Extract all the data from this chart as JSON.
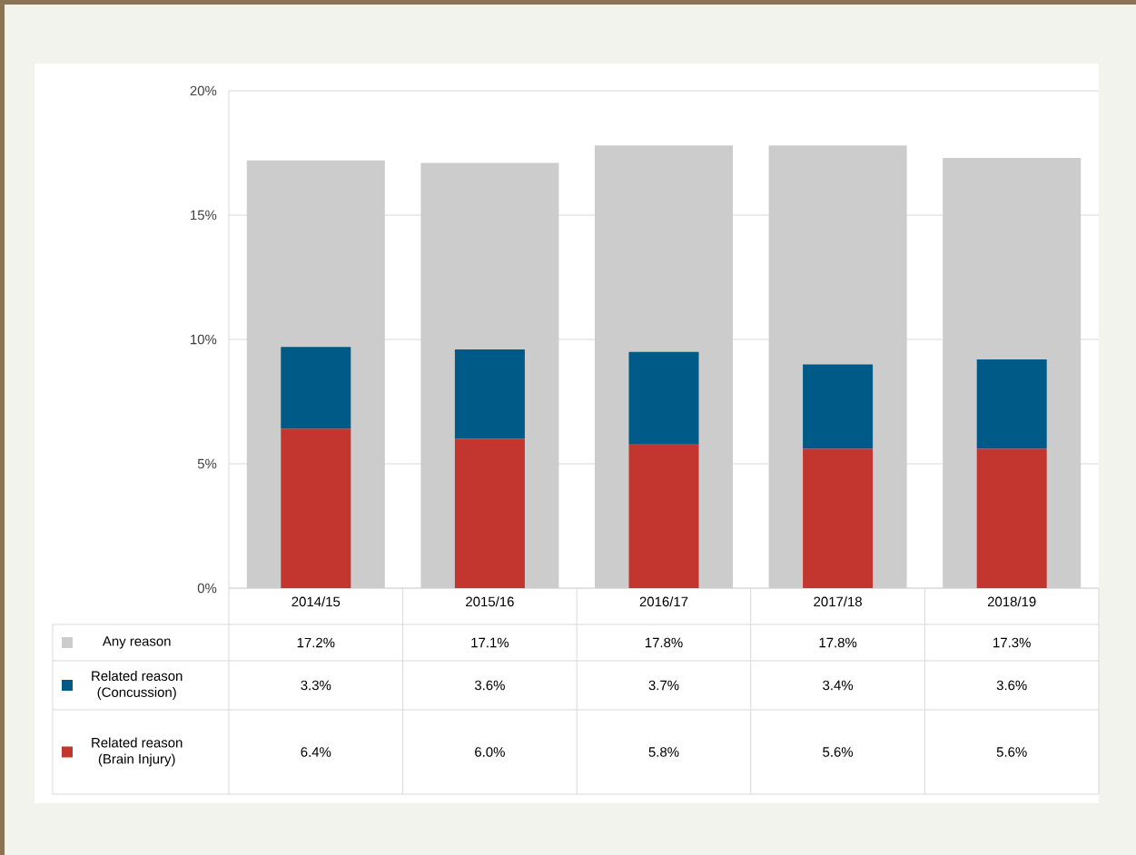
{
  "chart_data": [
    {
      "type": "bar",
      "categories": [
        "2014/15",
        "2015/16",
        "2016/17",
        "2017/18",
        "2018/19"
      ],
      "series": [
        {
          "name": "Any reason",
          "color": "#cccccc",
          "values": [
            17.2,
            17.1,
            17.8,
            17.8,
            17.3
          ],
          "value_labels": [
            "17.2%",
            "17.1%",
            "17.8%",
            "17.8%",
            "17.3%"
          ]
        }
      ],
      "ylim": [
        0,
        20
      ],
      "yticks": [
        {
          "value": 0,
          "label": "0%"
        },
        {
          "value": 5,
          "label": "5%"
        },
        {
          "value": 10,
          "label": "10%"
        },
        {
          "value": 15,
          "label": "15%"
        },
        {
          "value": 20,
          "label": "20%"
        }
      ],
      "grid": "y",
      "legend": "bottom"
    },
    {
      "type": "bar",
      "stacked": true,
      "categories": [
        null,
        null,
        null,
        null,
        null
      ],
      "series": [
        {
          "name": "Related reason (Brain Injury)",
          "color": "#c3362f",
          "values": [
            6.4,
            6.0,
            5.8,
            5.6,
            5.6
          ],
          "value_labels": [
            "6.4%",
            "6.0%",
            "5.8%",
            "5.6%",
            "5.6%"
          ]
        },
        {
          "name": "Related reason (Concussion)",
          "color": "#005a87",
          "values": [
            3.3,
            3.6,
            3.7,
            3.4,
            3.6
          ],
          "value_labels": [
            "3.3%",
            "3.6%",
            "3.7%",
            "3.4%",
            "3.6%"
          ]
        }
      ],
      "ylim": [
        0,
        20
      ],
      "tick_labels": false,
      "legend": "bottom"
    }
  ]
}
